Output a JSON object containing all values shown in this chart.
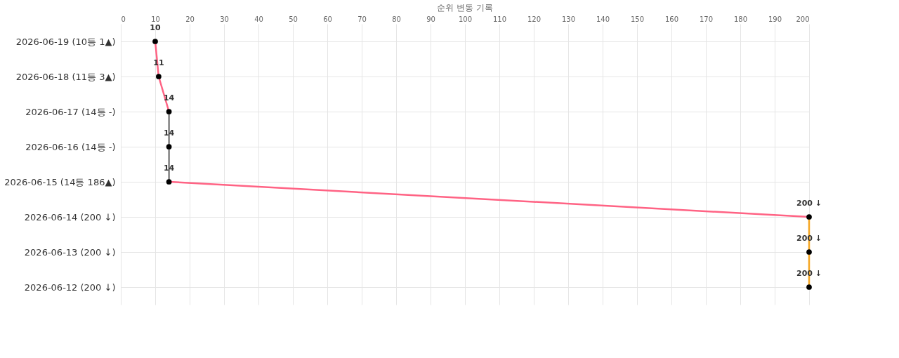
{
  "chart_data": {
    "type": "line",
    "orientation": "horizontal",
    "xlabel": "순위 변동 기록",
    "categories": [
      "2026-06-19 (10등 1▲)",
      "2026-06-18 (11등 3▲)",
      "2026-06-17 (14등 -)",
      "2026-06-16 (14등 -)",
      "2026-06-15 (14등 186▲)",
      "2026-06-14 (200 ↓)",
      "2026-06-13 (200 ↓)",
      "2026-06-12 (200 ↓)"
    ],
    "series": [
      {
        "color": "#ff6384",
        "marker": "none",
        "values": [
          10,
          11,
          14,
          null,
          null,
          null,
          null,
          null
        ]
      },
      {
        "color": "#808080",
        "marker": "none",
        "values": [
          null,
          null,
          14,
          14,
          14,
          null,
          null,
          null
        ]
      },
      {
        "color": "#ff6384",
        "marker": "none",
        "values": [
          null,
          null,
          null,
          null,
          14,
          200,
          null,
          null
        ]
      },
      {
        "color": "#f5a623",
        "marker": "none",
        "values": [
          null,
          null,
          null,
          null,
          null,
          200,
          200,
          200
        ]
      },
      {
        "type": "scatter",
        "marker": "circle",
        "color": "#000000",
        "values": [
          10,
          11,
          14,
          14,
          14,
          200,
          200,
          200
        ],
        "value_labels": [
          "10",
          "11",
          "14",
          "14",
          "14",
          "200 ↓",
          "200 ↓",
          "200 ↓"
        ]
      }
    ],
    "xlim": [
      0,
      200
    ],
    "xticks": [
      0,
      10,
      20,
      30,
      40,
      50,
      60,
      70,
      80,
      90,
      100,
      110,
      120,
      130,
      140,
      150,
      160,
      170,
      180,
      190,
      200
    ],
    "grid": true,
    "line_style": "solid"
  }
}
